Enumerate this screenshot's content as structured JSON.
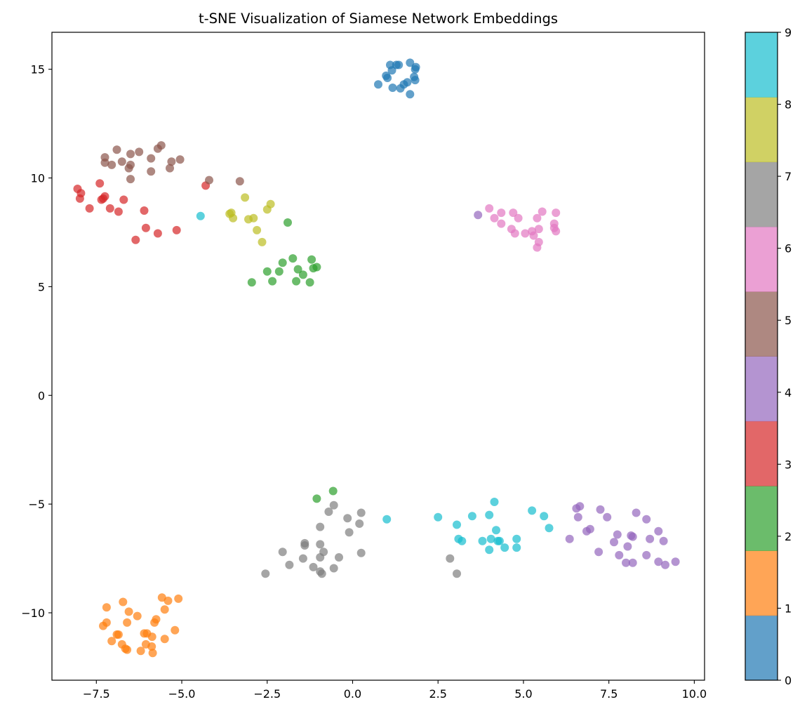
{
  "chart_data": {
    "type": "scatter",
    "title": "t-SNE Visualization of Siamese Network Embeddings",
    "xlabel": "",
    "ylabel": "",
    "xlim": [
      -8.8,
      10.3
    ],
    "ylim": [
      -13.1,
      16.7
    ],
    "x_ticks": [
      -7.5,
      -5.0,
      -2.5,
      0.0,
      2.5,
      5.0,
      7.5,
      10.0
    ],
    "x_tick_labels": [
      "−7.5",
      "−5.0",
      "−2.5",
      "0.0",
      "2.5",
      "5.0",
      "7.5",
      "10.0"
    ],
    "y_ticks": [
      -10,
      -5,
      0,
      5,
      10,
      15
    ],
    "y_tick_labels": [
      "−10",
      "−5",
      "0",
      "5",
      "10",
      "15"
    ],
    "grid": false,
    "colorbar": {
      "label": "",
      "ticks": [
        0,
        1,
        2,
        3,
        4,
        5,
        6,
        7,
        8,
        9
      ],
      "tick_labels": [
        "0",
        "1",
        "2",
        "3",
        "4",
        "5",
        "6",
        "7",
        "8",
        "9"
      ],
      "colors": [
        "#1f77b4",
        "#ff7f0e",
        "#2ca02c",
        "#d62728",
        "#9467bd",
        "#8c564b",
        "#e377c2",
        "#7f7f7f",
        "#bcbd22",
        "#17becf"
      ],
      "alpha": 0.7
    },
    "series": [
      {
        "class": 0,
        "points": [
          [
            0.75,
            14.3
          ],
          [
            0.98,
            14.7
          ],
          [
            1.02,
            14.6
          ],
          [
            1.1,
            15.2
          ],
          [
            1.15,
            14.95
          ],
          [
            1.28,
            15.2
          ],
          [
            1.35,
            15.2
          ],
          [
            1.17,
            14.15
          ],
          [
            1.4,
            14.12
          ],
          [
            1.5,
            14.3
          ],
          [
            1.6,
            14.4
          ],
          [
            1.68,
            15.3
          ],
          [
            1.8,
            14.65
          ],
          [
            1.83,
            15.0
          ],
          [
            1.85,
            15.1
          ],
          [
            1.83,
            14.5
          ],
          [
            1.68,
            13.85
          ]
        ]
      },
      {
        "class": 1,
        "points": [
          [
            -5.58,
            -9.3
          ],
          [
            -5.1,
            -9.35
          ],
          [
            -5.4,
            -9.45
          ],
          [
            -5.5,
            -9.85
          ],
          [
            -6.72,
            -9.5
          ],
          [
            -7.2,
            -9.75
          ],
          [
            -6.55,
            -9.95
          ],
          [
            -6.3,
            -10.15
          ],
          [
            -5.75,
            -10.3
          ],
          [
            -5.8,
            -10.45
          ],
          [
            -7.2,
            -10.45
          ],
          [
            -6.6,
            -10.45
          ],
          [
            -7.3,
            -10.6
          ],
          [
            -5.2,
            -10.8
          ],
          [
            -6.9,
            -11.0
          ],
          [
            -6.85,
            -11.0
          ],
          [
            -6.1,
            -10.95
          ],
          [
            -6.02,
            -10.95
          ],
          [
            -5.87,
            -11.1
          ],
          [
            -5.5,
            -11.2
          ],
          [
            -7.05,
            -11.3
          ],
          [
            -6.75,
            -11.45
          ],
          [
            -6.05,
            -11.45
          ],
          [
            -5.88,
            -11.55
          ],
          [
            -6.65,
            -11.65
          ],
          [
            -6.6,
            -11.7
          ],
          [
            -6.2,
            -11.75
          ],
          [
            -5.85,
            -11.85
          ]
        ]
      },
      {
        "class": 2,
        "points": [
          [
            -1.9,
            7.95
          ],
          [
            -1.75,
            6.3
          ],
          [
            -2.05,
            6.1
          ],
          [
            -1.2,
            6.25
          ],
          [
            -2.5,
            5.7
          ],
          [
            -2.15,
            5.7
          ],
          [
            -1.6,
            5.8
          ],
          [
            -1.15,
            5.85
          ],
          [
            -1.05,
            5.9
          ],
          [
            -1.45,
            5.55
          ],
          [
            -2.95,
            5.2
          ],
          [
            -2.35,
            5.25
          ],
          [
            -1.65,
            5.25
          ],
          [
            -1.25,
            5.2
          ],
          [
            -1.05,
            -4.75
          ],
          [
            -0.57,
            -4.4
          ]
        ]
      },
      {
        "class": 3,
        "points": [
          [
            -8.05,
            9.5
          ],
          [
            -7.95,
            9.3
          ],
          [
            -7.98,
            9.05
          ],
          [
            -7.4,
            9.75
          ],
          [
            -7.25,
            9.15
          ],
          [
            -7.3,
            9.05
          ],
          [
            -7.35,
            9.0
          ],
          [
            -6.7,
            9.0
          ],
          [
            -7.7,
            8.6
          ],
          [
            -7.1,
            8.6
          ],
          [
            -6.85,
            8.45
          ],
          [
            -6.1,
            8.5
          ],
          [
            -6.05,
            7.7
          ],
          [
            -5.7,
            7.45
          ],
          [
            -5.15,
            7.6
          ],
          [
            -6.35,
            7.15
          ],
          [
            -4.3,
            9.65
          ]
        ]
      },
      {
        "class": 4,
        "points": [
          [
            3.67,
            8.3
          ],
          [
            6.55,
            -5.2
          ],
          [
            6.65,
            -5.1
          ],
          [
            6.6,
            -5.6
          ],
          [
            7.25,
            -5.25
          ],
          [
            7.45,
            -5.6
          ],
          [
            8.3,
            -5.4
          ],
          [
            8.6,
            -5.7
          ],
          [
            6.35,
            -6.6
          ],
          [
            6.95,
            -6.15
          ],
          [
            6.85,
            -6.25
          ],
          [
            7.65,
            -6.75
          ],
          [
            7.75,
            -6.4
          ],
          [
            8.05,
            -6.95
          ],
          [
            8.15,
            -6.45
          ],
          [
            8.2,
            -6.5
          ],
          [
            8.7,
            -6.6
          ],
          [
            8.95,
            -6.25
          ],
          [
            9.1,
            -6.7
          ],
          [
            7.2,
            -7.2
          ],
          [
            7.8,
            -7.35
          ],
          [
            8.0,
            -7.7
          ],
          [
            8.2,
            -7.7
          ],
          [
            8.6,
            -7.35
          ],
          [
            8.95,
            -7.65
          ],
          [
            9.15,
            -7.8
          ],
          [
            9.45,
            -7.65
          ]
        ]
      },
      {
        "class": 5,
        "points": [
          [
            -5.6,
            11.5
          ],
          [
            -5.7,
            11.35
          ],
          [
            -6.9,
            11.3
          ],
          [
            -6.25,
            11.2
          ],
          [
            -6.5,
            11.1
          ],
          [
            -7.25,
            10.95
          ],
          [
            -5.9,
            10.9
          ],
          [
            -5.05,
            10.85
          ],
          [
            -5.3,
            10.75
          ],
          [
            -6.75,
            10.75
          ],
          [
            -7.25,
            10.7
          ],
          [
            -7.05,
            10.6
          ],
          [
            -6.5,
            10.6
          ],
          [
            -6.55,
            10.45
          ],
          [
            -5.35,
            10.45
          ],
          [
            -5.9,
            10.3
          ],
          [
            -6.5,
            9.95
          ],
          [
            -4.2,
            9.9
          ],
          [
            -3.3,
            9.85
          ]
        ]
      },
      {
        "class": 6,
        "points": [
          [
            4.0,
            8.6
          ],
          [
            4.35,
            8.4
          ],
          [
            4.7,
            8.4
          ],
          [
            5.55,
            8.45
          ],
          [
            5.95,
            8.4
          ],
          [
            4.15,
            8.15
          ],
          [
            4.85,
            8.15
          ],
          [
            5.4,
            8.15
          ],
          [
            4.35,
            7.9
          ],
          [
            5.9,
            7.9
          ],
          [
            4.65,
            7.65
          ],
          [
            4.75,
            7.45
          ],
          [
            5.05,
            7.45
          ],
          [
            5.25,
            7.55
          ],
          [
            5.45,
            7.65
          ],
          [
            5.3,
            7.35
          ],
          [
            5.45,
            7.05
          ],
          [
            5.4,
            6.8
          ],
          [
            5.95,
            7.55
          ],
          [
            5.9,
            7.7
          ]
        ]
      },
      {
        "class": 7,
        "points": [
          [
            -0.55,
            -5.05
          ],
          [
            -0.7,
            -5.35
          ],
          [
            0.25,
            -5.4
          ],
          [
            -0.15,
            -5.65
          ],
          [
            0.2,
            -5.9
          ],
          [
            -0.95,
            -6.05
          ],
          [
            -0.1,
            -6.3
          ],
          [
            -1.4,
            -6.8
          ],
          [
            -0.95,
            -6.85
          ],
          [
            -1.4,
            -6.9
          ],
          [
            -0.85,
            -7.2
          ],
          [
            -2.05,
            -7.2
          ],
          [
            -0.4,
            -7.45
          ],
          [
            -0.95,
            -7.45
          ],
          [
            -1.45,
            -7.5
          ],
          [
            0.25,
            -7.25
          ],
          [
            -1.85,
            -7.8
          ],
          [
            -1.15,
            -7.9
          ],
          [
            -0.55,
            -7.95
          ],
          [
            -0.95,
            -8.1
          ],
          [
            -0.9,
            -8.2
          ],
          [
            -2.55,
            -8.2
          ],
          [
            2.85,
            -7.5
          ],
          [
            3.05,
            -8.2
          ]
        ]
      },
      {
        "class": 8,
        "points": [
          [
            -3.15,
            9.1
          ],
          [
            -2.4,
            8.8
          ],
          [
            -2.5,
            8.55
          ],
          [
            -3.55,
            8.4
          ],
          [
            -3.6,
            8.35
          ],
          [
            -3.5,
            8.15
          ],
          [
            -2.9,
            8.15
          ],
          [
            -3.05,
            8.1
          ],
          [
            -2.8,
            7.6
          ],
          [
            -2.65,
            7.05
          ]
        ]
      },
      {
        "class": 9,
        "points": [
          [
            -4.45,
            8.25
          ],
          [
            1.0,
            -5.7
          ],
          [
            2.5,
            -5.6
          ],
          [
            3.05,
            -5.95
          ],
          [
            3.5,
            -5.55
          ],
          [
            4.0,
            -5.5
          ],
          [
            4.15,
            -4.9
          ],
          [
            5.25,
            -5.3
          ],
          [
            5.6,
            -5.55
          ],
          [
            4.2,
            -6.2
          ],
          [
            5.75,
            -6.1
          ],
          [
            3.1,
            -6.6
          ],
          [
            3.2,
            -6.7
          ],
          [
            4.05,
            -6.6
          ],
          [
            3.8,
            -6.7
          ],
          [
            4.25,
            -6.7
          ],
          [
            4.3,
            -6.7
          ],
          [
            4.8,
            -6.6
          ],
          [
            4.0,
            -7.1
          ],
          [
            4.45,
            -7.0
          ],
          [
            4.8,
            -7.0
          ]
        ]
      }
    ]
  }
}
